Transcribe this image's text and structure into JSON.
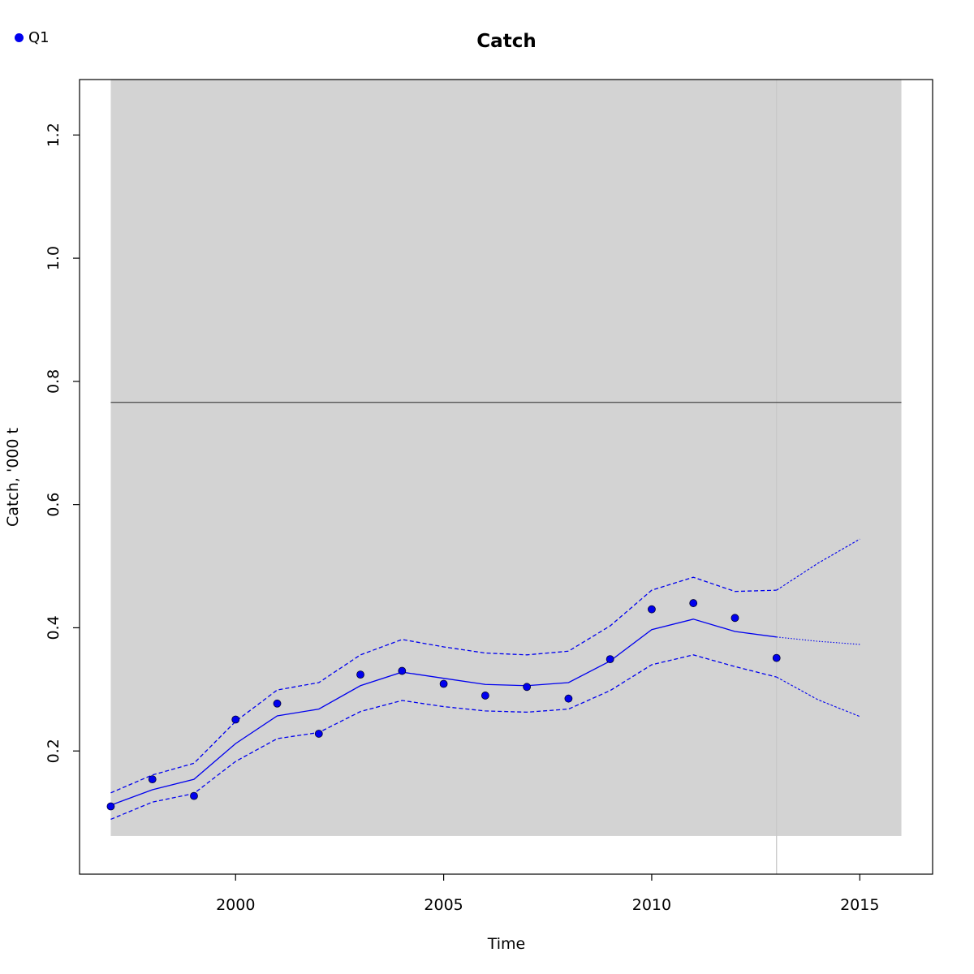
{
  "chart_data": {
    "type": "line",
    "title": "Catch",
    "xlabel": "Time",
    "ylabel": "Catch, '000 t",
    "xlim": [
      1996.25,
      2016.75
    ],
    "ylim": [
      0.0,
      1.29
    ],
    "x_ticks": [
      2000,
      2005,
      2010,
      2015
    ],
    "y_ticks": [
      0.2,
      0.4,
      0.6,
      0.8,
      1.0,
      1.2
    ],
    "shaded_region": {
      "x": [
        1997,
        2016
      ],
      "y": [
        0.062,
        1.29
      ],
      "color": "#d3d3d3"
    },
    "reference_line": {
      "y": 0.766,
      "color": "#555555"
    },
    "vertical_line": {
      "x": 2013,
      "color": "#c8c8c8"
    },
    "grid": false,
    "legend_position": "top-left",
    "series": [
      {
        "name": "Q1",
        "kind": "points",
        "color": "#0000ee",
        "x": [
          1997,
          1998,
          1999,
          2000,
          2001,
          2002,
          2003,
          2004,
          2005,
          2006,
          2007,
          2008,
          2009,
          2010,
          2011,
          2012,
          2013
        ],
        "values": [
          0.11,
          0.154,
          0.127,
          0.251,
          0.277,
          0.228,
          0.324,
          0.33,
          0.309,
          0.29,
          0.304,
          0.285,
          0.349,
          0.43,
          0.44,
          0.416,
          0.351
        ]
      },
      {
        "kind": "fit",
        "color": "#0000ee",
        "x": [
          1997,
          1998,
          1999,
          2000,
          2001,
          2002,
          2003,
          2004,
          2005,
          2006,
          2007,
          2008,
          2009,
          2010,
          2011,
          2012,
          2013
        ],
        "values": [
          0.112,
          0.137,
          0.154,
          0.212,
          0.257,
          0.268,
          0.306,
          0.328,
          0.318,
          0.308,
          0.306,
          0.311,
          0.346,
          0.397,
          0.414,
          0.394,
          0.385
        ]
      },
      {
        "kind": "upper",
        "color": "#0000ee",
        "x": [
          1997,
          1998,
          1999,
          2000,
          2001,
          2002,
          2003,
          2004,
          2005,
          2006,
          2007,
          2008,
          2009,
          2010,
          2011,
          2012,
          2013
        ],
        "values": [
          0.132,
          0.161,
          0.18,
          0.248,
          0.299,
          0.311,
          0.356,
          0.381,
          0.369,
          0.359,
          0.356,
          0.362,
          0.403,
          0.461,
          0.482,
          0.459,
          0.461
        ]
      },
      {
        "kind": "lower",
        "color": "#0000ee",
        "x": [
          1997,
          1998,
          1999,
          2000,
          2001,
          2002,
          2003,
          2004,
          2005,
          2006,
          2007,
          2008,
          2009,
          2010,
          2011,
          2012,
          2013
        ],
        "values": [
          0.089,
          0.117,
          0.131,
          0.183,
          0.22,
          0.23,
          0.264,
          0.282,
          0.272,
          0.265,
          0.263,
          0.268,
          0.298,
          0.34,
          0.356,
          0.337,
          0.32
        ]
      },
      {
        "kind": "forecast",
        "color": "#0000ee",
        "x": [
          2013,
          2014,
          2015
        ],
        "values": [
          0.385,
          0.378,
          0.373
        ]
      },
      {
        "kind": "forecast-upper",
        "color": "#0000ee",
        "x": [
          2013,
          2014,
          2015
        ],
        "values": [
          0.461,
          0.505,
          0.544
        ]
      },
      {
        "kind": "forecast-lower",
        "color": "#0000ee",
        "x": [
          2013,
          2014,
          2015
        ],
        "values": [
          0.32,
          0.283,
          0.256
        ]
      }
    ]
  }
}
